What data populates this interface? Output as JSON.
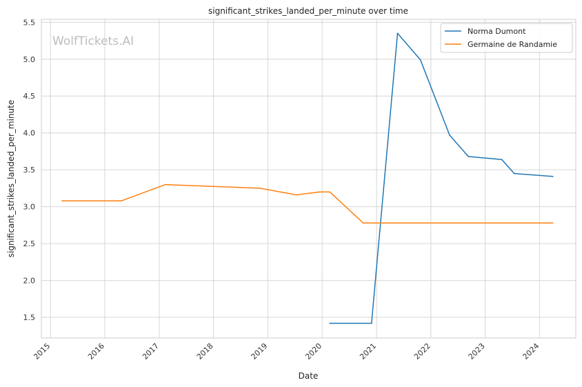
{
  "chart_data": {
    "type": "line",
    "title": "significant_strikes_landed_per_minute over time",
    "xlabel": "Date",
    "ylabel": "significant_strikes_landed_per_minute",
    "watermark": "WolfTickets.AI",
    "x_ticks": [
      "2015",
      "2016",
      "2017",
      "2018",
      "2019",
      "2020",
      "2021",
      "2022",
      "2023",
      "2024"
    ],
    "y_ticks": [
      "1.5",
      "2.0",
      "2.5",
      "3.0",
      "3.5",
      "4.0",
      "4.5",
      "5.0",
      "5.5"
    ],
    "xlim": [
      "2014-11-01",
      "2024-09-01"
    ],
    "ylim": [
      1.22,
      5.54
    ],
    "grid": true,
    "legend": "top-right",
    "series": [
      {
        "name": "Norma Dumont",
        "color": "#1f77b4",
        "points": [
          {
            "x": "2020-02-22",
            "y": 1.42
          },
          {
            "x": "2020-11-28",
            "y": 1.42
          },
          {
            "x": "2021-05-22",
            "y": 5.35
          },
          {
            "x": "2021-10-23",
            "y": 4.99
          },
          {
            "x": "2022-05-07",
            "y": 3.97
          },
          {
            "x": "2022-09-10",
            "y": 3.68
          },
          {
            "x": "2023-04-22",
            "y": 3.64
          },
          {
            "x": "2023-07-15",
            "y": 3.45
          },
          {
            "x": "2024-03-30",
            "y": 3.41
          }
        ]
      },
      {
        "name": "Germaine de Randamie",
        "color": "#ff7f0e",
        "points": [
          {
            "x": "2015-03-21",
            "y": 3.08
          },
          {
            "x": "2016-04-23",
            "y": 3.08
          },
          {
            "x": "2017-02-11",
            "y": 3.3
          },
          {
            "x": "2018-11-10",
            "y": 3.25
          },
          {
            "x": "2019-07-13",
            "y": 3.16
          },
          {
            "x": "2019-12-14",
            "y": 3.2
          },
          {
            "x": "2020-02-22",
            "y": 3.2
          },
          {
            "x": "2020-10-03",
            "y": 2.78
          },
          {
            "x": "2024-03-30",
            "y": 2.78
          }
        ]
      }
    ]
  }
}
